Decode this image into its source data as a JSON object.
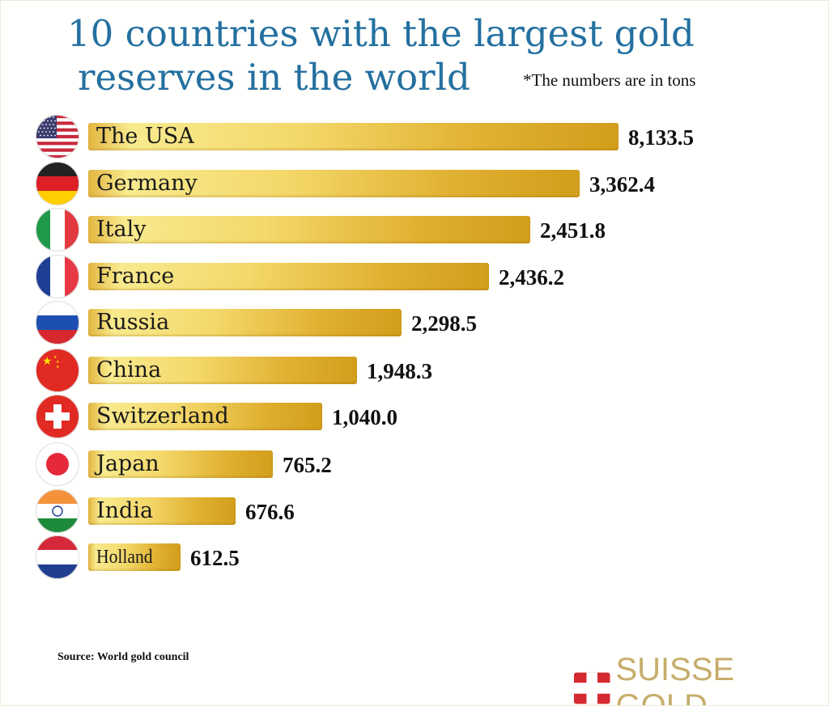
{
  "chart_data": {
    "type": "bar",
    "orientation": "horizontal",
    "title_lines": [
      "10 countries with the largest gold",
      "reserves in the world"
    ],
    "note": "*The numbers are in tons",
    "categories": [
      "The USA",
      "Germany",
      "Italy",
      "France",
      "Russia",
      "China",
      "Switzerland",
      "Japan",
      "India",
      "Holland"
    ],
    "values": [
      8133.5,
      3362.4,
      2451.8,
      2436.2,
      2298.5,
      1948.3,
      1040.0,
      765.2,
      676.6,
      612.5
    ],
    "value_labels": [
      "8,133.5",
      "3,362.4",
      "2,451.8",
      "2,436.2",
      "2,298.5",
      "1,948.3",
      "1,040.0",
      "765.2",
      "676.6",
      "612.5"
    ],
    "flag_icons": [
      "usa-flag-icon",
      "germany-flag-icon",
      "italy-flag-icon",
      "france-flag-icon",
      "russia-flag-icon",
      "china-flag-icon",
      "switzerland-flag-icon",
      "japan-flag-icon",
      "india-flag-icon",
      "netherlands-flag-icon"
    ],
    "bar_color": "#e0b030",
    "grid": false,
    "legend": "none"
  },
  "source": "Source: World gold council",
  "logo": {
    "text": "SUISSE GOLD",
    "color": "#c6ad6a",
    "icon": "swiss-cross-icon"
  }
}
